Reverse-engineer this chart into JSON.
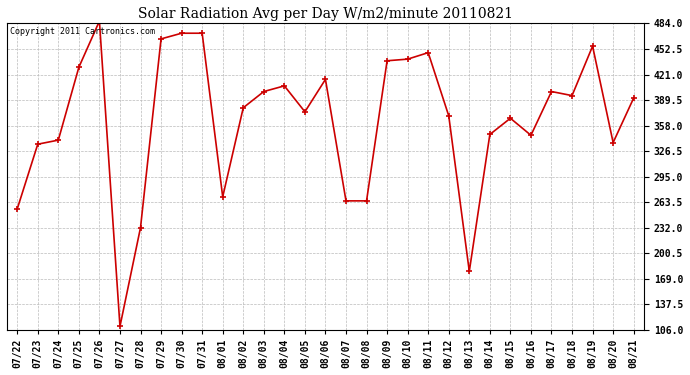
{
  "title": "Solar Radiation Avg per Day W/m2/minute 20110821",
  "copyright_text": "Copyright 2011 Cartronics.com",
  "dates": [
    "07/22",
    "07/23",
    "07/24",
    "07/25",
    "07/26",
    "07/27",
    "07/28",
    "07/29",
    "07/30",
    "07/31",
    "08/01",
    "08/02",
    "08/03",
    "08/04",
    "08/05",
    "08/06",
    "08/07",
    "08/08",
    "08/09",
    "08/10",
    "08/11",
    "08/12",
    "08/13",
    "08/14",
    "08/15",
    "08/16",
    "08/17",
    "08/18",
    "08/19",
    "08/20",
    "08/21"
  ],
  "values": [
    255,
    335,
    340,
    430,
    487,
    110,
    232,
    465,
    472,
    472,
    270,
    380,
    400,
    407,
    375,
    415,
    265,
    265,
    438,
    440,
    448,
    370,
    178,
    347,
    367,
    346,
    400,
    395,
    456,
    337,
    392
  ],
  "line_color": "#cc0000",
  "marker": "+",
  "marker_color": "#cc0000",
  "bg_color": "#ffffff",
  "grid_color": "#bbbbbb",
  "ylim_min": 106.0,
  "ylim_max": 484.0,
  "yticks": [
    106.0,
    137.5,
    169.0,
    200.5,
    232.0,
    263.5,
    295.0,
    326.5,
    358.0,
    389.5,
    421.0,
    452.5,
    484.0
  ],
  "title_fontsize": 10,
  "copyright_fontsize": 6,
  "tick_fontsize": 7,
  "ylabel_fontweight": "bold"
}
